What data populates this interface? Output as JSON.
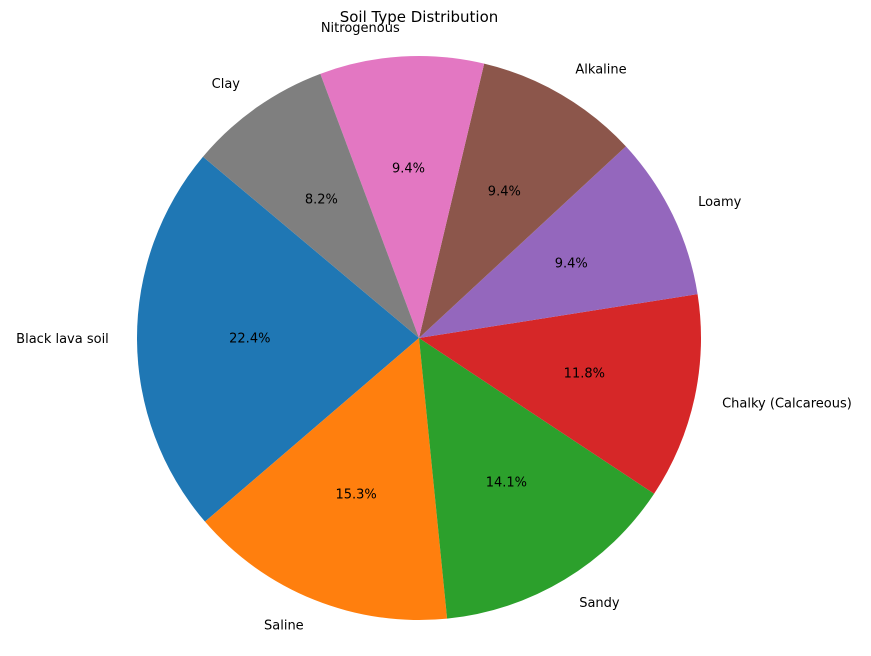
{
  "chart_data": {
    "type": "pie",
    "title": "Soil Type Distribution",
    "start_angle_deg": 140,
    "direction": "counterclockwise",
    "slices": [
      {
        "label": "Black lava soil",
        "pct_label": "22.4%",
        "value": 22.4,
        "color": "#1f77b4"
      },
      {
        "label": "Saline",
        "pct_label": "15.3%",
        "value": 15.3,
        "color": "#ff7f0e"
      },
      {
        "label": "Sandy",
        "pct_label": "14.1%",
        "value": 14.1,
        "color": "#2ca02c"
      },
      {
        "label": "Chalky (Calcareous)",
        "pct_label": "11.8%",
        "value": 11.8,
        "color": "#d62728"
      },
      {
        "label": "Loamy",
        "pct_label": "9.4%",
        "value": 9.4,
        "color": "#9467bd"
      },
      {
        "label": "Alkaline",
        "pct_label": "9.4%",
        "value": 9.4,
        "color": "#8c564b"
      },
      {
        "label": "Nitrogenous",
        "pct_label": "9.4%",
        "value": 9.4,
        "color": "#e377c2"
      },
      {
        "label": "Clay",
        "pct_label": "8.2%",
        "value": 8.2,
        "color": "#7f7f7f"
      }
    ]
  }
}
